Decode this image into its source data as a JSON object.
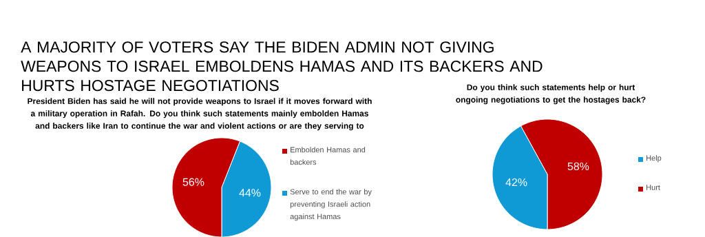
{
  "chart_data": [
    {
      "type": "pie",
      "title": "A MAJORITY OF VOTERS SAY THE BIDEN ADMIN NOT GIVING WEAPONS TO ISRAEL EMBOLDENS HAMAS AND ITS BACKERS AND HURTS HOSTAGE NEGOTIATIONS",
      "subtitle": "President Biden has said he will not provide weapons to Israel if it moves forward with a military operation in Rafah.  Do you think such statements mainly embolden Hamas and backers like Iran to continue the war and violent actions or are they serving to",
      "categories": [
        "Embolden Hamas and backers",
        "Serve to end the war by preventing Israeli action against Hamas"
      ],
      "values": [
        56,
        44
      ],
      "colors": [
        "#c00000",
        "#0f9ad6"
      ],
      "value_labels": [
        "56%",
        "44%"
      ],
      "legend": "right"
    },
    {
      "type": "pie",
      "title": "Do you think such statements help or hurt ongoing negotiations to get the hostages back?",
      "categories": [
        "Help",
        "Hurt"
      ],
      "values": [
        42,
        58
      ],
      "colors": [
        "#0f9ad6",
        "#c00000"
      ],
      "value_labels": [
        "42%",
        "58%"
      ],
      "legend": "right"
    }
  ]
}
